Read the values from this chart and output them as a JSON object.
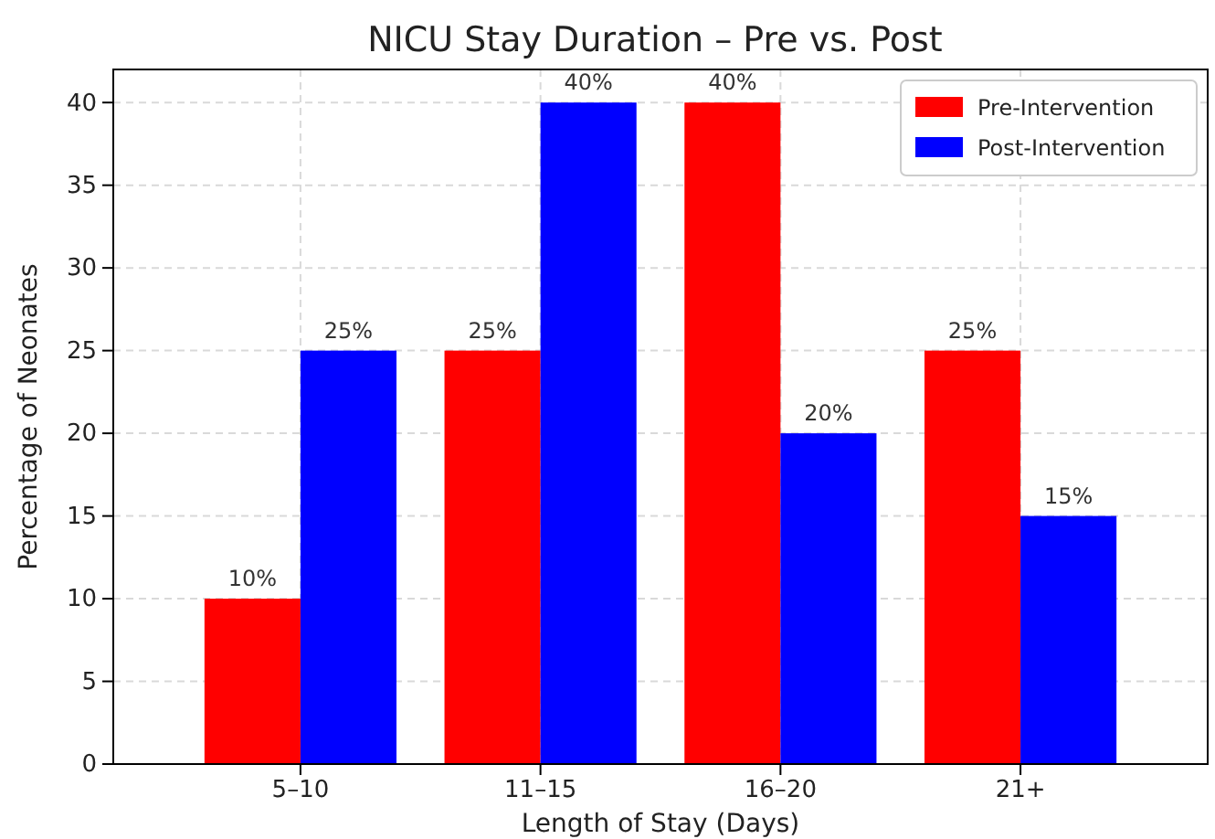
{
  "chart_data": {
    "type": "bar",
    "title": "NICU Stay Duration – Pre vs. Post",
    "xlabel": "Length of Stay (Days)",
    "ylabel": "Percentage of Neonates",
    "categories": [
      "5–10",
      "11–15",
      "16–20",
      "21+"
    ],
    "series": [
      {
        "name": "Pre-Intervention",
        "color": "#ff0000",
        "values": [
          10,
          25,
          40,
          25
        ],
        "value_labels": [
          "10%",
          "25%",
          "40%",
          "25%"
        ]
      },
      {
        "name": "Post-Intervention",
        "color": "#0000ff",
        "values": [
          25,
          40,
          20,
          15
        ],
        "value_labels": [
          "25%",
          "40%",
          "20%",
          "15%"
        ]
      }
    ],
    "ylim": [
      0,
      42
    ],
    "yticks": [
      0,
      5,
      10,
      15,
      20,
      25,
      30,
      35,
      40
    ],
    "grid": true,
    "legend": "top right"
  }
}
